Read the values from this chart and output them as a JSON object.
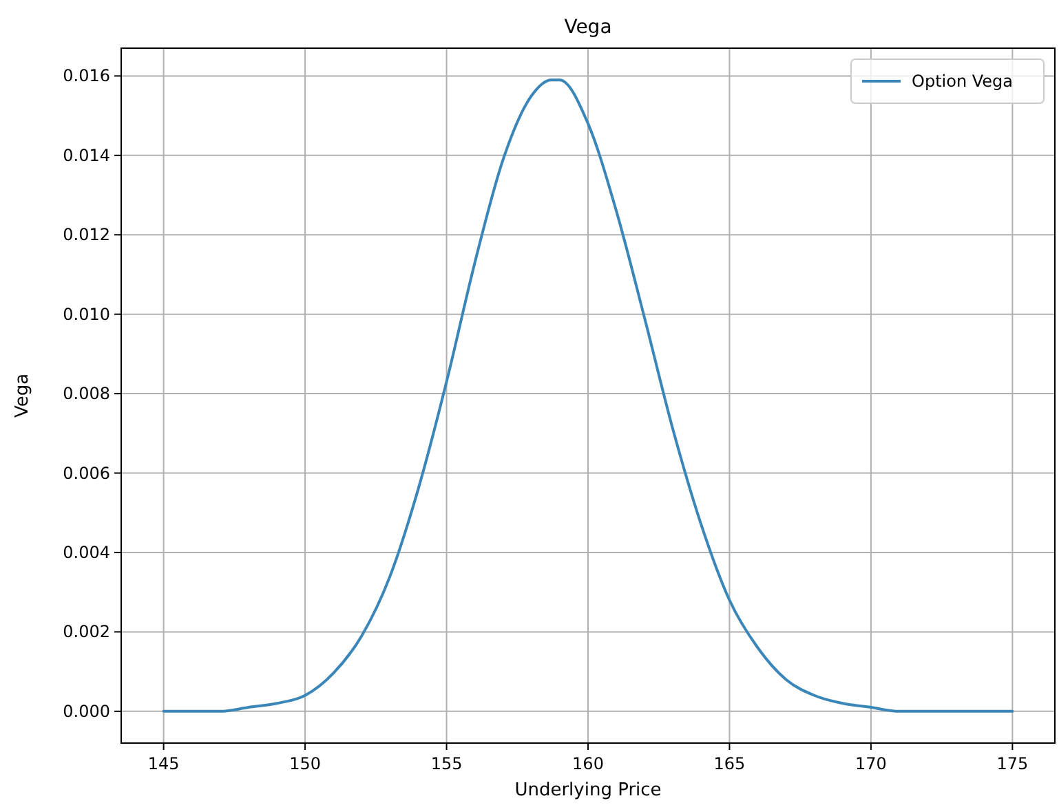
{
  "chart_data": {
    "type": "line",
    "title": "Vega",
    "xlabel": "Underlying Price",
    "ylabel": "Vega",
    "x": [
      145,
      146,
      147,
      148,
      149,
      150,
      151,
      152,
      153,
      154,
      155,
      156,
      157,
      158,
      158.7,
      159,
      160,
      161,
      162,
      163,
      164,
      165,
      166,
      167,
      168,
      169,
      170,
      171,
      172,
      173,
      174,
      175
    ],
    "series": [
      {
        "name": "Option Vega",
        "color": "#3a86b8",
        "values": [
          0,
          0,
          0,
          0.0001,
          0.0002,
          0.0004,
          0.00096,
          0.0019,
          0.0034,
          0.0056,
          0.0083,
          0.0113,
          0.0139,
          0.0155,
          0.0159,
          0.0159,
          0.0148,
          0.0126,
          0.0099,
          0.0071,
          0.0047,
          0.0028,
          0.0016,
          0.0008,
          0.0004,
          0.0002,
          0.0001,
          0,
          0,
          0,
          0,
          0
        ]
      }
    ],
    "xlim": [
      143.5,
      176.5
    ],
    "xticks": [
      145,
      150,
      155,
      160,
      165,
      170,
      175
    ],
    "ylim": [
      -0.0008,
      0.0167
    ],
    "yticks": [
      {
        "value": 0,
        "label": "0.000"
      },
      {
        "value": 0.002,
        "label": "0.002"
      },
      {
        "value": 0.004,
        "label": "0.004"
      },
      {
        "value": 0.006,
        "label": "0.006"
      },
      {
        "value": 0.008,
        "label": "0.008"
      },
      {
        "value": 0.01,
        "label": "0.010"
      },
      {
        "value": 0.012,
        "label": "0.012"
      },
      {
        "value": 0.014,
        "label": "0.014"
      },
      {
        "value": 0.016,
        "label": "0.016"
      }
    ],
    "grid": true,
    "legend": "top right",
    "marker": "none",
    "line_style": "solid"
  }
}
